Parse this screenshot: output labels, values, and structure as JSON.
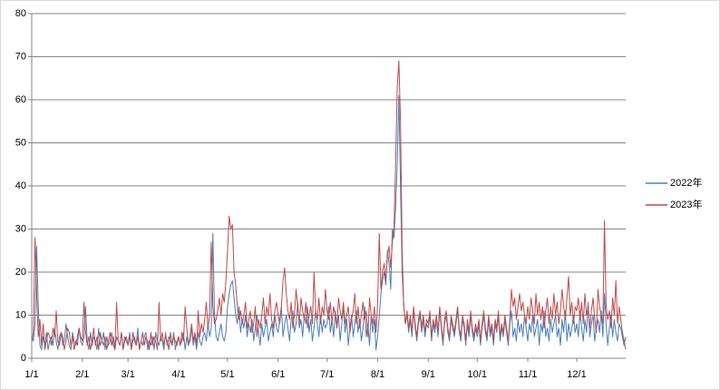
{
  "chart_data": {
    "type": "line",
    "categories": [
      "1/1",
      null,
      null,
      null,
      null,
      null,
      null,
      null,
      null,
      null,
      null,
      null,
      null,
      null,
      null,
      null,
      null,
      null,
      null,
      null,
      null,
      null,
      null,
      null,
      null,
      null,
      null,
      null,
      null,
      null,
      null,
      "2/1",
      null,
      null,
      null,
      null,
      null,
      null,
      null,
      null,
      null,
      null,
      null,
      null,
      null,
      null,
      null,
      null,
      null,
      null,
      null,
      null,
      null,
      null,
      null,
      null,
      null,
      null,
      null,
      "3/1",
      null,
      null,
      null,
      null,
      null,
      null,
      null,
      null,
      null,
      null,
      null,
      null,
      null,
      null,
      null,
      null,
      null,
      null,
      null,
      null,
      null,
      null,
      null,
      null,
      null,
      null,
      null,
      null,
      null,
      null,
      "4/1",
      null,
      null,
      null,
      null,
      null,
      null,
      null,
      null,
      null,
      null,
      null,
      null,
      null,
      null,
      null,
      null,
      null,
      null,
      null,
      null,
      null,
      null,
      null,
      null,
      null,
      null,
      null,
      null,
      null,
      "5/1",
      null,
      null,
      null,
      null,
      null,
      null,
      null,
      null,
      null,
      null,
      null,
      null,
      null,
      null,
      null,
      null,
      null,
      null,
      null,
      null,
      null,
      null,
      null,
      null,
      null,
      null,
      null,
      null,
      null,
      null,
      "6/1",
      null,
      null,
      null,
      null,
      null,
      null,
      null,
      null,
      null,
      null,
      null,
      null,
      null,
      null,
      null,
      null,
      null,
      null,
      null,
      null,
      null,
      null,
      null,
      null,
      null,
      null,
      null,
      null,
      null,
      "7/1",
      null,
      null,
      null,
      null,
      null,
      null,
      null,
      null,
      null,
      null,
      null,
      null,
      null,
      null,
      null,
      null,
      null,
      null,
      null,
      null,
      null,
      null,
      null,
      null,
      null,
      null,
      null,
      null,
      null,
      null,
      "8/1",
      null,
      null,
      null,
      null,
      null,
      null,
      null,
      null,
      null,
      null,
      null,
      null,
      null,
      null,
      null,
      null,
      null,
      null,
      null,
      null,
      null,
      null,
      null,
      null,
      null,
      null,
      null,
      null,
      null,
      null,
      "9/1",
      null,
      null,
      null,
      null,
      null,
      null,
      null,
      null,
      null,
      null,
      null,
      null,
      null,
      null,
      null,
      null,
      null,
      null,
      null,
      null,
      null,
      null,
      null,
      null,
      null,
      null,
      null,
      null,
      null,
      "10/1",
      null,
      null,
      null,
      null,
      null,
      null,
      null,
      null,
      null,
      null,
      null,
      null,
      null,
      null,
      null,
      null,
      null,
      null,
      null,
      null,
      null,
      null,
      null,
      null,
      null,
      null,
      null,
      null,
      null,
      null,
      "11/1",
      null,
      null,
      null,
      null,
      null,
      null,
      null,
      null,
      null,
      null,
      null,
      null,
      null,
      null,
      null,
      null,
      null,
      null,
      null,
      null,
      null,
      null,
      null,
      null,
      null,
      null,
      null,
      null,
      null,
      "12/1",
      null,
      null,
      null,
      null,
      null,
      null,
      null,
      null,
      null,
      null,
      null,
      null,
      null,
      null,
      null,
      null,
      null,
      null,
      null,
      null,
      null,
      null,
      null,
      null,
      null,
      null,
      null,
      null,
      null,
      null
    ],
    "series": [
      {
        "name": "2022年",
        "color": "#4a7ebb",
        "values": [
          5,
          4,
          8,
          26,
          12,
          3,
          2,
          5,
          3,
          6,
          2,
          4,
          5,
          3,
          7,
          4,
          2,
          5,
          6,
          3,
          4,
          8,
          5,
          3,
          2,
          6,
          4,
          3,
          5,
          7,
          4,
          3,
          5,
          12,
          4,
          2,
          6,
          3,
          5,
          4,
          2,
          7,
          3,
          4,
          6,
          2,
          5,
          3,
          4,
          6,
          3,
          2,
          5,
          4,
          3,
          6,
          2,
          4,
          5,
          3,
          6,
          2,
          4,
          5,
          3,
          7,
          2,
          4,
          3,
          5,
          6,
          2,
          4,
          3,
          5,
          2,
          6,
          4,
          3,
          5,
          4,
          2,
          6,
          3,
          5,
          4,
          3,
          6,
          2,
          4,
          5,
          3,
          4,
          6,
          2,
          5,
          3,
          4,
          7,
          3,
          5,
          2,
          6,
          4,
          3,
          5,
          6,
          4,
          8,
          5,
          7,
          29,
          10,
          5,
          4,
          6,
          8,
          5,
          4,
          6,
          12,
          15,
          17,
          18,
          14,
          10,
          8,
          12,
          6,
          9,
          7,
          10,
          5,
          8,
          6,
          9,
          4,
          7,
          10,
          6,
          3,
          8,
          5,
          7,
          9,
          4,
          6,
          8,
          5,
          10,
          7,
          6,
          9,
          12,
          5,
          8,
          10,
          7,
          4,
          9,
          11,
          6,
          8,
          13,
          7,
          9,
          5,
          10,
          8,
          12,
          6,
          9,
          4,
          7,
          11,
          8,
          5,
          10,
          6,
          9,
          7,
          8,
          12,
          6,
          9,
          5,
          11,
          7,
          10,
          4,
          8,
          12,
          6,
          9,
          3,
          7,
          10,
          5,
          8,
          11,
          6,
          9,
          4,
          7,
          12,
          5,
          8,
          3,
          10,
          6,
          9,
          2,
          5,
          10,
          15,
          18,
          20,
          17,
          25,
          22,
          16,
          30,
          28,
          35,
          45,
          61,
          40,
          20,
          12,
          8,
          10,
          6,
          9,
          5,
          11,
          7,
          4,
          8,
          10,
          6,
          9,
          5,
          8,
          7,
          10,
          4,
          8,
          6,
          9,
          5,
          11,
          7,
          3,
          8,
          10,
          6,
          4,
          9,
          7,
          5,
          8,
          11,
          6,
          4,
          9,
          7,
          3,
          8,
          5,
          10,
          6,
          4,
          7,
          5,
          8,
          3,
          7,
          10,
          6,
          4,
          9,
          5,
          7,
          3,
          8,
          6,
          10,
          4,
          7,
          5,
          9,
          6,
          3,
          8,
          11,
          5,
          7,
          4,
          9,
          6,
          8,
          5,
          10,
          7,
          4,
          8,
          6,
          10,
          5,
          7,
          9,
          3,
          8,
          6,
          11,
          5,
          7,
          4,
          9,
          6,
          8,
          10,
          5,
          7,
          3,
          9,
          6,
          11,
          4,
          8,
          5,
          7,
          10,
          6,
          8,
          5,
          11,
          7,
          4,
          9,
          6,
          13,
          5,
          8,
          10,
          4,
          7,
          9,
          6,
          11,
          5,
          15,
          8,
          3,
          7,
          10,
          5,
          9,
          6,
          4,
          8,
          7,
          5,
          3,
          5
        ]
      },
      {
        "name": "2023年",
        "color": "#be4b48",
        "values": [
          4,
          6,
          28,
          15,
          5,
          9,
          3,
          8,
          2,
          4,
          6,
          5,
          3,
          7,
          5,
          11,
          4,
          3,
          6,
          5,
          2,
          4,
          7,
          6,
          3,
          5,
          2,
          4,
          3,
          7,
          5,
          4,
          13,
          6,
          3,
          5,
          2,
          4,
          7,
          3,
          5,
          2,
          6,
          4,
          3,
          5,
          2,
          4,
          6,
          3,
          5,
          2,
          13,
          4,
          3,
          6,
          2,
          5,
          4,
          3,
          5,
          2,
          6,
          4,
          3,
          5,
          2,
          4,
          6,
          3,
          5,
          4,
          2,
          6,
          3,
          5,
          4,
          2,
          13,
          4,
          6,
          3,
          5,
          4,
          2,
          6,
          3,
          5,
          4,
          3,
          5,
          3,
          6,
          4,
          12,
          7,
          3,
          5,
          8,
          4,
          6,
          3,
          11,
          5,
          8,
          6,
          9,
          13,
          7,
          10,
          27,
          12,
          8,
          9,
          11,
          14,
          10,
          15,
          13,
          18,
          25,
          33,
          30,
          31,
          20,
          17,
          12,
          9,
          11,
          8,
          10,
          13,
          7,
          9,
          11,
          6,
          8,
          12,
          5,
          9,
          7,
          10,
          14,
          8,
          12,
          10,
          15,
          9,
          7,
          11,
          13,
          10,
          8,
          12,
          18,
          21,
          15,
          11,
          9,
          13,
          7,
          10,
          16,
          12,
          8,
          14,
          11,
          9,
          13,
          7,
          10,
          12,
          8,
          20,
          11,
          9,
          14,
          8,
          12,
          10,
          16,
          11,
          9,
          13,
          8,
          12,
          10,
          7,
          14,
          11,
          9,
          13,
          8,
          10,
          12,
          6,
          9,
          11,
          15,
          8,
          12,
          7,
          10,
          13,
          9,
          11,
          5,
          14,
          10,
          8,
          12,
          6,
          13,
          29,
          16,
          20,
          22,
          18,
          24,
          26,
          21,
          27,
          30,
          45,
          63,
          69,
          55,
          25,
          12,
          8,
          11,
          7,
          10,
          6,
          12,
          8,
          5,
          9,
          11,
          7,
          10,
          6,
          9,
          8,
          11,
          5,
          9,
          7,
          10,
          6,
          12,
          8,
          4,
          9,
          11,
          7,
          5,
          10,
          8,
          6,
          9,
          12,
          7,
          5,
          10,
          8,
          4,
          9,
          6,
          11,
          7,
          5,
          8,
          6,
          9,
          4,
          8,
          11,
          7,
          5,
          10,
          6,
          8,
          4,
          9,
          7,
          11,
          5,
          8,
          6,
          10,
          7,
          4,
          9,
          16,
          12,
          14,
          9,
          12,
          15,
          11,
          13,
          10,
          8,
          12,
          9,
          14,
          11,
          8,
          15,
          10,
          13,
          9,
          12,
          7,
          11,
          14,
          8,
          12,
          9,
          15,
          10,
          13,
          8,
          11,
          16,
          12,
          9,
          14,
          19,
          10,
          13,
          8,
          12,
          11,
          14,
          9,
          13,
          8,
          15,
          10,
          12,
          7,
          11,
          14,
          9,
          6,
          16,
          12,
          10,
          8,
          32,
          12,
          9,
          11,
          7,
          14,
          10,
          18,
          8,
          12,
          9,
          6,
          4,
          2
        ]
      }
    ],
    "ylim": [
      0,
      80
    ],
    "yticks": [
      0,
      10,
      20,
      30,
      40,
      50,
      60,
      70,
      80
    ],
    "grid": true,
    "legend": "right"
  }
}
